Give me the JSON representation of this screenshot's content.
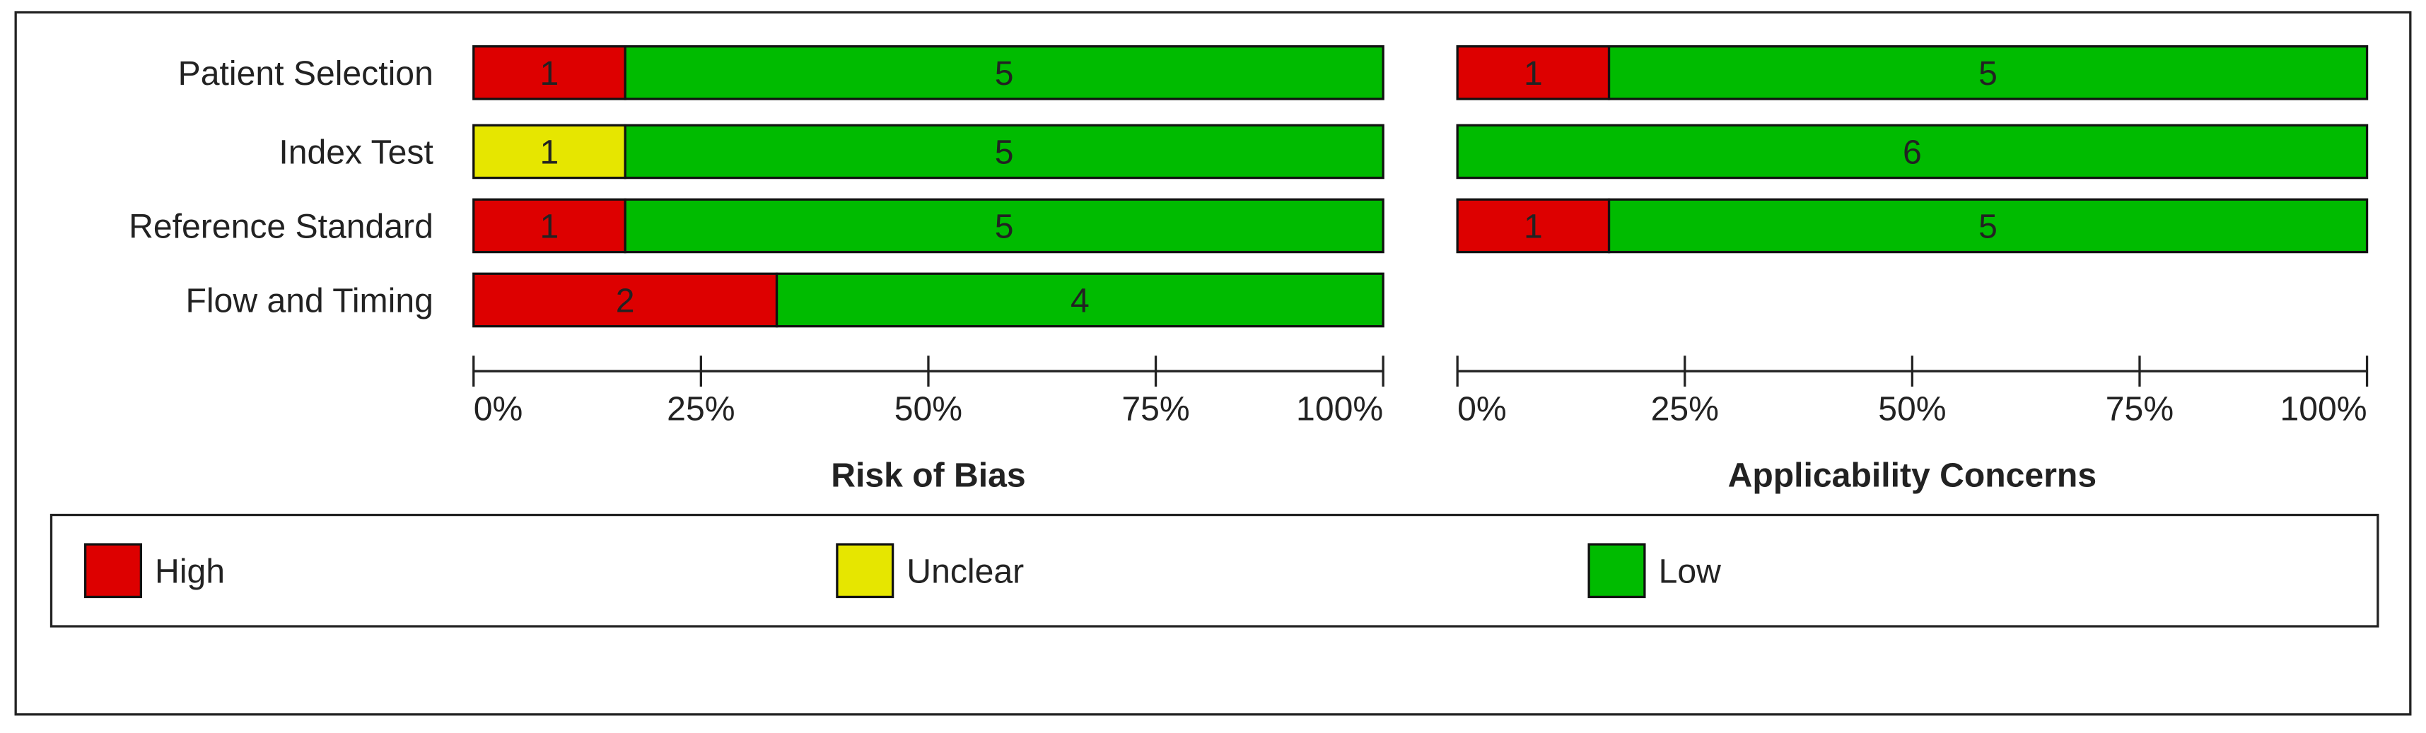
{
  "chart_data": [
    {
      "type": "bar",
      "stacked": true,
      "xlabel": "Risk of Bias",
      "categories": [
        "Patient Selection",
        "Index Test",
        "Reference Standard",
        "Flow and Timing"
      ],
      "series": [
        {
          "name": "High",
          "color": "#dd0000",
          "values": [
            1,
            0,
            1,
            2
          ]
        },
        {
          "name": "Unclear",
          "color": "#e6e600",
          "values": [
            0,
            1,
            0,
            0
          ]
        },
        {
          "name": "Low",
          "color": "#00bb00",
          "values": [
            5,
            5,
            5,
            4
          ]
        }
      ],
      "xlim": [
        0,
        100
      ],
      "xticks": [
        {
          "value": 0,
          "label": "0%"
        },
        {
          "value": 25,
          "label": "25%"
        },
        {
          "value": 50,
          "label": "50%"
        },
        {
          "value": 75,
          "label": "75%"
        },
        {
          "value": 100,
          "label": "100%"
        }
      ]
    },
    {
      "type": "bar",
      "stacked": true,
      "xlabel": "Applicability Concerns",
      "series": [
        {
          "color": "#dd0000",
          "values": [
            1,
            0,
            1,
            null
          ]
        },
        {
          "color": "#e6e600",
          "values": [
            0,
            0,
            0,
            null
          ]
        },
        {
          "color": "#00bb00",
          "values": [
            5,
            6,
            5,
            null
          ]
        }
      ],
      "xlim": [
        0,
        100
      ],
      "xticks": [
        {
          "value": 0,
          "label": "0%"
        },
        {
          "value": 25,
          "label": "25%"
        },
        {
          "value": 50,
          "label": "50%"
        },
        {
          "value": 75,
          "label": "75%"
        },
        {
          "value": 100,
          "label": "100%"
        }
      ]
    }
  ]
}
